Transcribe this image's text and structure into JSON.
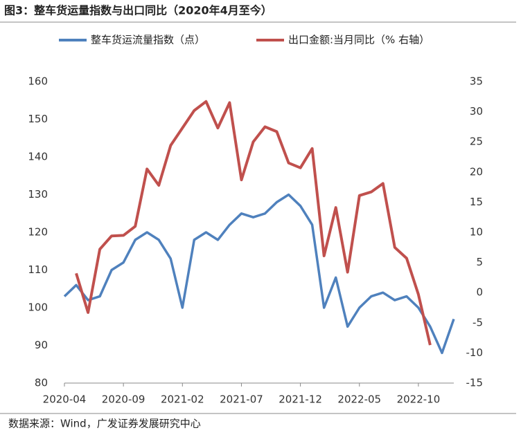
{
  "chart_data": {
    "type": "line",
    "title": "图3：整车货运量指数与出口同比（2020年4月至今）",
    "source": "数据来源：Wind，广发证券发展研究中心",
    "categories": [
      "2020-04",
      null,
      null,
      null,
      null,
      "2020-09",
      null,
      null,
      null,
      null,
      "2021-02",
      null,
      null,
      null,
      null,
      "2021-07",
      null,
      null,
      null,
      null,
      "2021-12",
      null,
      null,
      null,
      null,
      "2022-05",
      null,
      null,
      null,
      null,
      "2022-10",
      null,
      null,
      null
    ],
    "series": [
      {
        "name": "整车货运流量指数（点）",
        "color": "#4f81bd",
        "axis": "y",
        "values": [
          103,
          106,
          102,
          103,
          110,
          112,
          118,
          120,
          118,
          113,
          100,
          118,
          120,
          118,
          122,
          125,
          124,
          125,
          128,
          130,
          127,
          122,
          100,
          108,
          95,
          100,
          103,
          104,
          102,
          103,
          100,
          95,
          88,
          97
        ]
      },
      {
        "name": "出口金额:当月同比（% 右轴）",
        "color": "#c0504d",
        "axis": "y2",
        "values": [
          null,
          3.2,
          -3.3,
          7.2,
          9.4,
          9.5,
          11,
          20.5,
          17.8,
          24.4,
          27.3,
          30.2,
          31.7,
          27.3,
          31.5,
          18.7,
          25,
          27.5,
          26.7,
          21.5,
          20.7,
          23.9,
          6.1,
          14.1,
          3.4,
          16.1,
          16.7,
          18.1,
          7.5,
          5.7,
          -0.3,
          -8.7,
          null,
          null
        ]
      }
    ],
    "ylim": [
      80,
      160
    ],
    "yticks": [
      80,
      90,
      100,
      110,
      120,
      130,
      140,
      150,
      160
    ],
    "y2lim": [
      -15,
      35
    ],
    "y2ticks": [
      -15,
      -10,
      -5,
      0,
      5,
      10,
      15,
      20,
      25,
      30,
      35
    ],
    "legend": "top"
  }
}
